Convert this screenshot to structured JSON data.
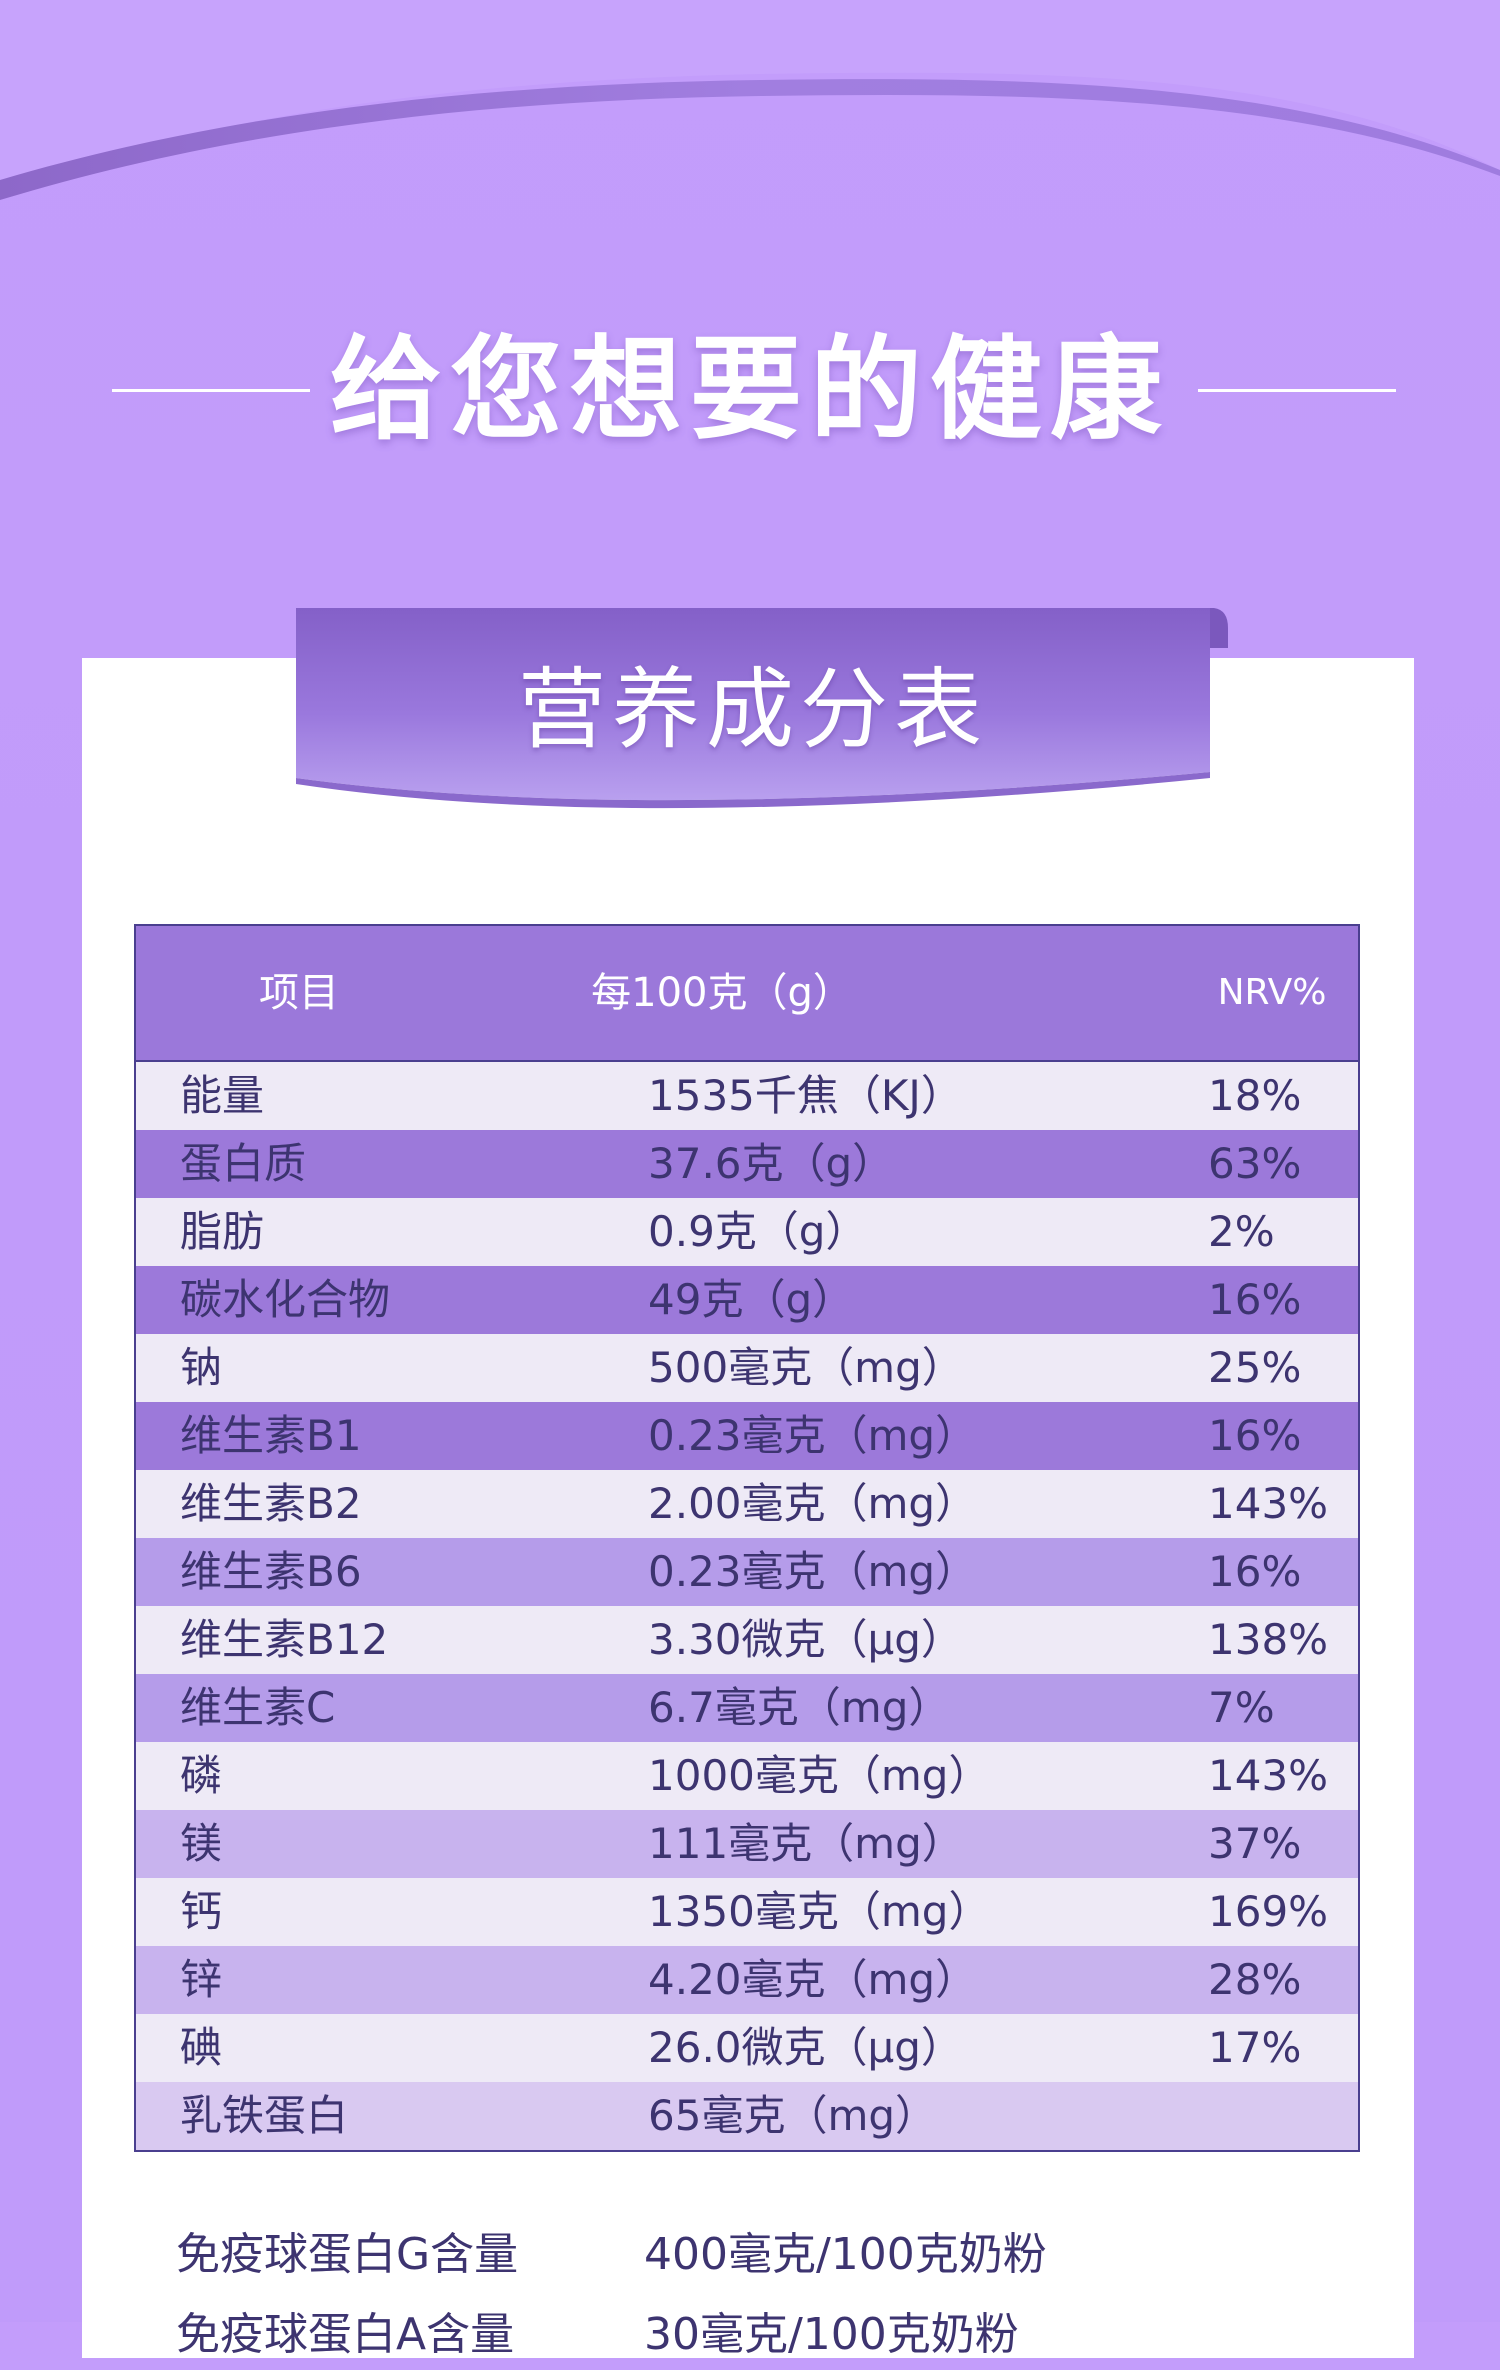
{
  "colors": {
    "background": "#c39dfb",
    "header_row": "#9b78da",
    "row_light": "#eeeaf6",
    "row_dark": "#9c79da",
    "text_dark": "#3d3470",
    "border": "#4a3f8f"
  },
  "heading": {
    "title": "给您想要的健康"
  },
  "section": {
    "title": "营养成分表"
  },
  "table": {
    "headers": [
      "项目",
      "每100克（g）",
      "NRV%"
    ],
    "rows": [
      {
        "item": "能量",
        "amount": "1535千焦（KJ）",
        "nrv": "18%"
      },
      {
        "item": "蛋白质",
        "amount": "37.6克（g）",
        "nrv": "63%"
      },
      {
        "item": "脂肪",
        "amount": "0.9克（g）",
        "nrv": "2%"
      },
      {
        "item": "碳水化合物",
        "amount": "49克（g）",
        "nrv": "16%"
      },
      {
        "item": "钠",
        "amount": "500毫克（mg）",
        "nrv": "25%"
      },
      {
        "item": "维生素B1",
        "amount": "0.23毫克（mg）",
        "nrv": "16%"
      },
      {
        "item": "维生素B2",
        "amount": "2.00毫克（mg）",
        "nrv": "143%"
      },
      {
        "item": "维生素B6",
        "amount": "0.23毫克（mg）",
        "nrv": "16%"
      },
      {
        "item": "维生素B12",
        "amount": "3.30微克（μg）",
        "nrv": "138%"
      },
      {
        "item": "维生素C",
        "amount": "6.7毫克（mg）",
        "nrv": "7%"
      },
      {
        "item": "磷",
        "amount": "1000毫克（mg）",
        "nrv": "143%"
      },
      {
        "item": "镁",
        "amount": "111毫克（mg）",
        "nrv": "37%"
      },
      {
        "item": "钙",
        "amount": "1350毫克（mg）",
        "nrv": "169%"
      },
      {
        "item": "锌",
        "amount": "4.20毫克（mg）",
        "nrv": "28%"
      },
      {
        "item": "碘",
        "amount": "26.0微克（μg）",
        "nrv": "17%"
      },
      {
        "item": "乳铁蛋白",
        "amount": "65毫克（mg）",
        "nrv": ""
      }
    ]
  },
  "footnotes": [
    {
      "label": "免疫球蛋白G含量",
      "value": "400毫克/100克奶粉"
    },
    {
      "label": "免疫球蛋白A含量",
      "value": "30毫克/100克奶粉"
    }
  ]
}
